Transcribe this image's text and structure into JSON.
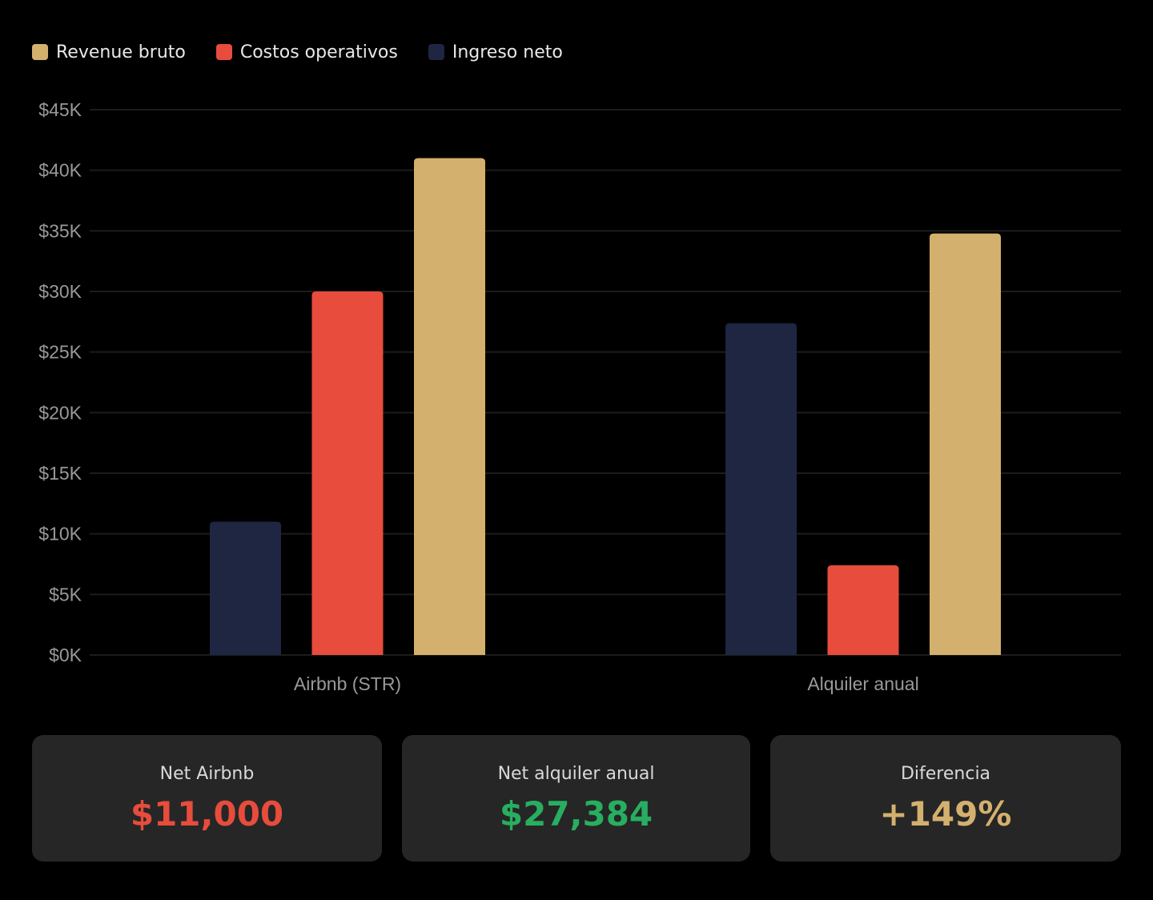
{
  "legend": [
    {
      "label": "Revenue bruto",
      "color": "#d4b06e"
    },
    {
      "label": "Costos operativos",
      "color": "#e74c3c"
    },
    {
      "label": "Ingreso neto",
      "color": "#1e2642"
    }
  ],
  "chart_data": {
    "type": "bar",
    "categories": [
      "Airbnb (STR)",
      "Alquiler anual"
    ],
    "series": [
      {
        "name": "Ingreso neto",
        "color": "#1e2642",
        "values": [
          11000,
          27384
        ]
      },
      {
        "name": "Costos operativos",
        "color": "#e74c3c",
        "values": [
          30000,
          7400
        ]
      },
      {
        "name": "Revenue bruto",
        "color": "#d4b06e",
        "values": [
          41000,
          34784
        ]
      }
    ],
    "yticks": [
      "$0K",
      "$5K",
      "$10K",
      "$15K",
      "$20K",
      "$25K",
      "$30K",
      "$35K",
      "$40K",
      "$45K"
    ],
    "ylim": [
      0,
      45000
    ],
    "grid": true,
    "legend_position": "top-left"
  },
  "cards": [
    {
      "label": "Net Airbnb",
      "value": "$11,000",
      "color": "#e74c3c"
    },
    {
      "label": "Net alquiler anual",
      "value": "$27,384",
      "color": "#27ae60"
    },
    {
      "label": "Diferencia",
      "value": "+149%",
      "color": "#d4b06e"
    }
  ]
}
